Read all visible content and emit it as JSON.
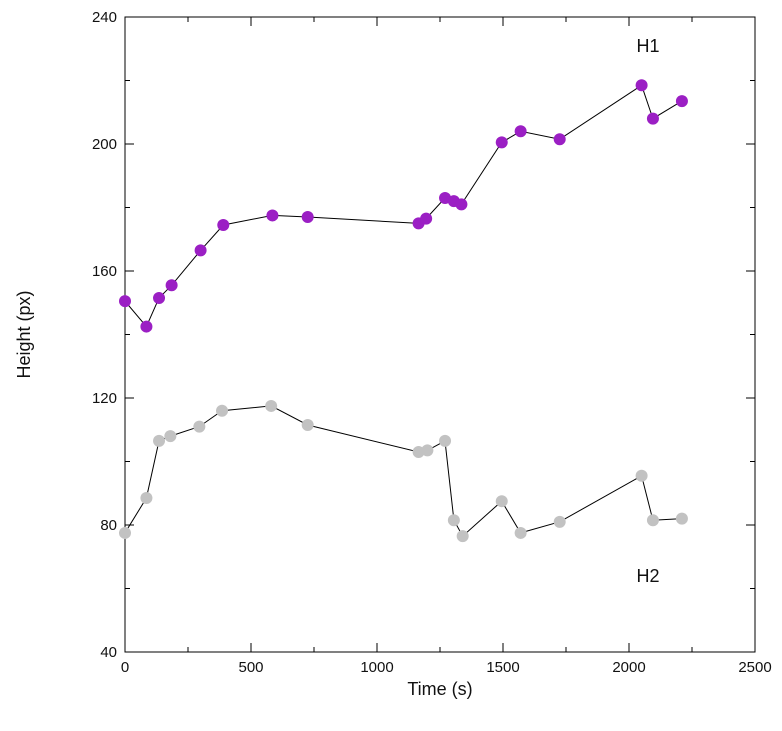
{
  "chart_data": {
    "type": "scatter",
    "title": "",
    "xlabel": "Time (s)",
    "ylabel": "Height (px)",
    "xlim": [
      0,
      2500
    ],
    "ylim": [
      40,
      240
    ],
    "xticks": [
      0,
      500,
      1000,
      1500,
      2000,
      2500
    ],
    "yticks": [
      40,
      80,
      120,
      160,
      200,
      240
    ],
    "grid": false,
    "legend": "none",
    "connected_lines": true,
    "series": [
      {
        "name": "H1",
        "color": "#9b1fc4",
        "points": [
          [
            0,
            150.5
          ],
          [
            85,
            142.5
          ],
          [
            135,
            151.5
          ],
          [
            185,
            155.5
          ],
          [
            300,
            166.5
          ],
          [
            390,
            174.5
          ],
          [
            585,
            177.5
          ],
          [
            725,
            177
          ],
          [
            1165,
            175
          ],
          [
            1195,
            176.5
          ],
          [
            1270,
            183
          ],
          [
            1305,
            182
          ],
          [
            1335,
            181
          ],
          [
            1495,
            200.5
          ],
          [
            1570,
            204
          ],
          [
            1725,
            201.5
          ],
          [
            2050,
            218.5
          ],
          [
            2095,
            208
          ],
          [
            2210,
            213.5
          ]
        ]
      },
      {
        "name": "H2",
        "color": "#c2c2c2",
        "points": [
          [
            0,
            77.5
          ],
          [
            85,
            88.5
          ],
          [
            135,
            106.5
          ],
          [
            180,
            108
          ],
          [
            295,
            111
          ],
          [
            385,
            116
          ],
          [
            580,
            117.5
          ],
          [
            725,
            111.5
          ],
          [
            1165,
            103
          ],
          [
            1200,
            103.5
          ],
          [
            1270,
            106.5
          ],
          [
            1305,
            81.5
          ],
          [
            1340,
            76.5
          ],
          [
            1495,
            87.5
          ],
          [
            1570,
            77.5
          ],
          [
            1725,
            81
          ],
          [
            2050,
            95.5
          ],
          [
            2095,
            81.5
          ],
          [
            2210,
            82
          ]
        ]
      }
    ],
    "annotations": [
      {
        "text": "H1",
        "x": 2030,
        "y": 229
      },
      {
        "text": "H2",
        "x": 2030,
        "y": 62
      }
    ],
    "line_color": "#000000"
  }
}
